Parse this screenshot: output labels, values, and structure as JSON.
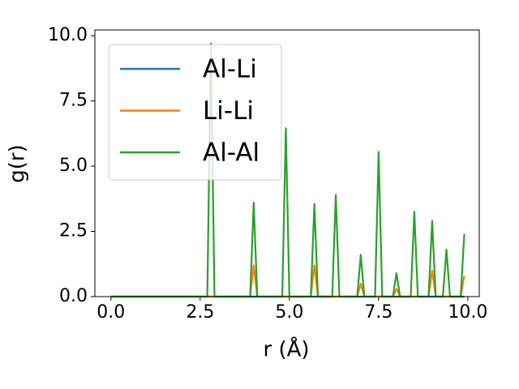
{
  "chart_data": {
    "type": "line",
    "xlabel": "r (Å)",
    "ylabel": "g(r)",
    "x": [
      0,
      0.1,
      0.2,
      0.3,
      0.4,
      0.5,
      0.6,
      0.7,
      0.8,
      0.9,
      1,
      1.1,
      1.2,
      1.3,
      1.4,
      1.5,
      1.6,
      1.7,
      1.8,
      1.9,
      2,
      2.1,
      2.2,
      2.3,
      2.4,
      2.5,
      2.6,
      2.7,
      2.8,
      2.9,
      3,
      3.1,
      3.2,
      3.3,
      3.4,
      3.5,
      3.6,
      3.7,
      3.8,
      3.9,
      4,
      4.1,
      4.2,
      4.3,
      4.4,
      4.5,
      4.6,
      4.7,
      4.8,
      4.9,
      5,
      5.1,
      5.2,
      5.3,
      5.4,
      5.5,
      5.6,
      5.7,
      5.8,
      5.9,
      6,
      6.1,
      6.2,
      6.3,
      6.4,
      6.5,
      6.6,
      6.7,
      6.8,
      6.9,
      7,
      7.1,
      7.2,
      7.3,
      7.4,
      7.5,
      7.6,
      7.7,
      7.8,
      7.9,
      8,
      8.1,
      8.2,
      8.3,
      8.4,
      8.5,
      8.6,
      8.7,
      8.8,
      8.9,
      9,
      9.1,
      9.2,
      9.3,
      9.4,
      9.5,
      9.6,
      9.7,
      9.8,
      9.9
    ],
    "series": [
      {
        "name": "Al-Li",
        "color": "#1f77b4",
        "values": [
          0,
          0,
          0,
          0,
          0,
          0,
          0,
          0,
          0,
          0,
          0,
          0,
          0,
          0,
          0,
          0,
          0,
          0,
          0,
          0,
          0,
          0,
          0,
          0,
          0,
          0,
          0,
          0,
          0,
          0,
          0,
          0,
          0,
          0,
          0,
          0,
          0,
          0,
          0,
          0,
          0,
          0,
          0,
          0,
          0,
          0,
          0,
          0,
          0,
          0,
          0,
          0,
          0,
          0,
          0,
          0,
          0,
          0,
          0,
          0,
          0,
          0,
          0,
          0,
          0,
          0,
          0,
          0,
          0,
          0,
          0,
          0,
          0,
          0,
          0,
          0,
          0,
          0,
          0,
          0,
          0,
          0,
          0,
          0,
          0,
          0,
          0,
          0,
          0,
          0,
          0,
          0,
          0,
          0,
          0,
          0,
          0,
          0,
          0,
          0
        ]
      },
      {
        "name": "Li-Li",
        "color": "#ff7f0e",
        "values": [
          0,
          0,
          0,
          0,
          0,
          0,
          0,
          0,
          0,
          0,
          0,
          0,
          0,
          0,
          0,
          0,
          0,
          0,
          0,
          0,
          0,
          0,
          0,
          0,
          0,
          0,
          0,
          0,
          0,
          0,
          0,
          0,
          0,
          0,
          0,
          0,
          0,
          0,
          0,
          0,
          1.2,
          0,
          0,
          0,
          0,
          0,
          0,
          0,
          0,
          0,
          0,
          0,
          0,
          0,
          0,
          0,
          0,
          1.2,
          0,
          0,
          0,
          0,
          0,
          0,
          0,
          0,
          0,
          0,
          0,
          0,
          0.5,
          0,
          0,
          0,
          0,
          0,
          0,
          0,
          0,
          0,
          0.3,
          0,
          0,
          0,
          0,
          0,
          0,
          0,
          0,
          0,
          1,
          0,
          0,
          0,
          0,
          0,
          0,
          0,
          0,
          0.8
        ]
      },
      {
        "name": "Al-Al",
        "color": "#2ca02c",
        "values": [
          0,
          0,
          0,
          0,
          0,
          0,
          0,
          0,
          0,
          0,
          0,
          0,
          0,
          0,
          0,
          0,
          0,
          0,
          0,
          0,
          0,
          0,
          0,
          0,
          0,
          0,
          0,
          0,
          9.7,
          0,
          0,
          0,
          0,
          0,
          0,
          0,
          0,
          0,
          0,
          0,
          3.6,
          0,
          0,
          0,
          0,
          0,
          0,
          0,
          0,
          6.45,
          0,
          0,
          0,
          0,
          0,
          0,
          0,
          3.55,
          0,
          0,
          0,
          0,
          0,
          3.9,
          0,
          0,
          0,
          0,
          0,
          0,
          1.6,
          0,
          0,
          0,
          0,
          5.55,
          0,
          0,
          0,
          0,
          0.9,
          0,
          0,
          0,
          0,
          3.25,
          0,
          0,
          0,
          0,
          2.9,
          0,
          0,
          0,
          1.8,
          0,
          0,
          0,
          0,
          2.4
        ]
      }
    ],
    "xlim": [
      -0.45,
      10.32
    ],
    "ylim": [
      0,
      10.22
    ],
    "xticks": [
      {
        "value": 0,
        "label": "0.0"
      },
      {
        "value": 2.5,
        "label": "2.5"
      },
      {
        "value": 5,
        "label": "5.0"
      },
      {
        "value": 7.5,
        "label": "7.5"
      },
      {
        "value": 10,
        "label": "10.0"
      }
    ],
    "yticks": [
      {
        "value": 0,
        "label": "0.0"
      },
      {
        "value": 2.5,
        "label": "2.5"
      },
      {
        "value": 5,
        "label": "5.0"
      },
      {
        "value": 7.5,
        "label": "7.5"
      },
      {
        "value": 10,
        "label": "10.0"
      }
    ],
    "grid": false,
    "legend": "upper left"
  }
}
